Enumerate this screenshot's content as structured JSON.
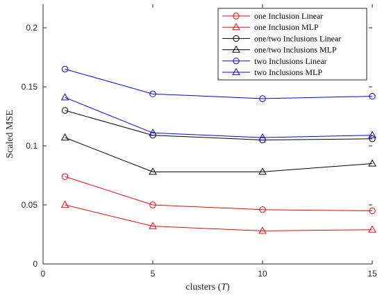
{
  "chart_data": {
    "type": "line",
    "xlabel_prefix": "clusters (",
    "xlabel_var": "T",
    "xlabel_suffix": ")",
    "ylabel": "Scaled MSE",
    "xlim": [
      0,
      15
    ],
    "ylim": [
      0,
      0.22
    ],
    "xticks": [
      0,
      5,
      10,
      15
    ],
    "xtick_labels": [
      "0",
      "5",
      "10",
      "15"
    ],
    "yticks": [
      0,
      0.05,
      0.1,
      0.15,
      0.2
    ],
    "ytick_labels": [
      "0",
      "0.05",
      "0.1",
      "0.15",
      "0.2"
    ],
    "grid": false,
    "legend_position": "top-right",
    "x": [
      1,
      5,
      10,
      15
    ],
    "series": [
      {
        "name": "one Inclusion Linear",
        "color": "#ff0000",
        "marker": "circle",
        "values": [
          0.074,
          0.05,
          0.046,
          0.045
        ]
      },
      {
        "name": "one Inclusion MLP",
        "color": "#ff0000",
        "marker": "triangle",
        "values": [
          0.05,
          0.032,
          0.028,
          0.029
        ]
      },
      {
        "name": "one/two Inclusions Linear",
        "color": "#000000",
        "marker": "circle",
        "values": [
          0.13,
          0.109,
          0.105,
          0.106
        ]
      },
      {
        "name": "one/two Inclusions MLP",
        "color": "#000000",
        "marker": "triangle",
        "values": [
          0.107,
          0.078,
          0.078,
          0.085
        ]
      },
      {
        "name": "two Inclusions Linear",
        "color": "#0000ff",
        "marker": "circle",
        "values": [
          0.165,
          0.144,
          0.14,
          0.142
        ]
      },
      {
        "name": "two Inclusions MLP",
        "color": "#0000ff",
        "marker": "triangle",
        "values": [
          0.141,
          0.111,
          0.107,
          0.109
        ]
      }
    ]
  }
}
